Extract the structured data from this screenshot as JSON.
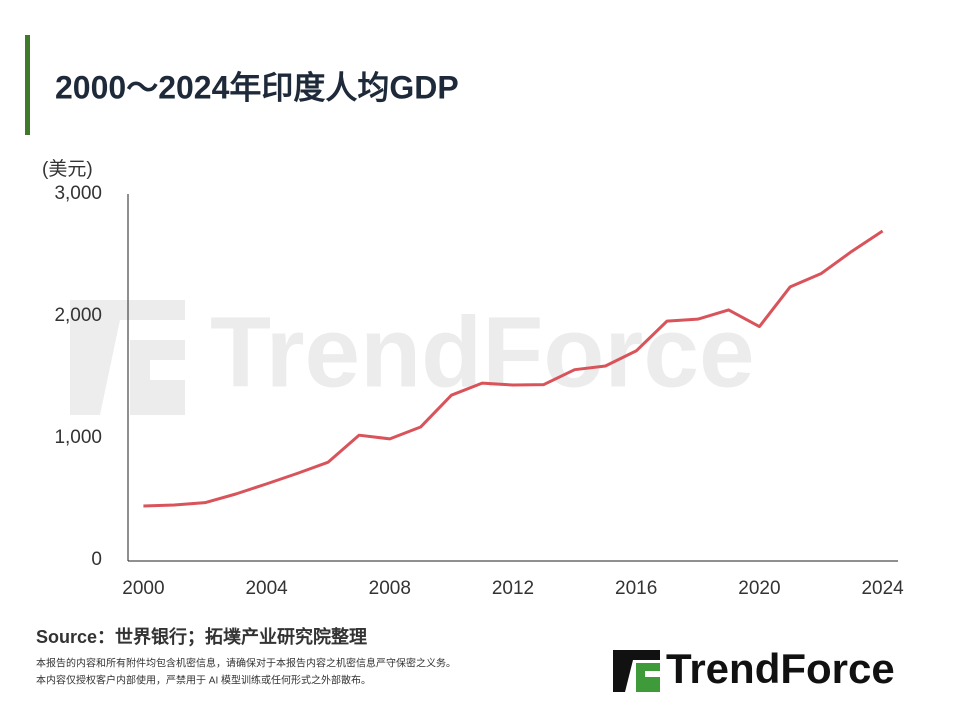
{
  "chart_data": {
    "type": "line",
    "title": "2000～2024年印度人均GDP",
    "y_label": "(美元)",
    "x": [
      2000,
      2001,
      2002,
      2003,
      2004,
      2005,
      2006,
      2007,
      2008,
      2009,
      2010,
      2011,
      2012,
      2013,
      2014,
      2015,
      2016,
      2017,
      2018,
      2019,
      2020,
      2021,
      2022,
      2023,
      2024
    ],
    "series": [
      {
        "name": "印度人均GDP",
        "color": "#d9535a",
        "values": [
          443,
          451,
          470,
          541,
          624,
          710,
          802,
          1023,
          993,
          1090,
          1351,
          1450,
          1434,
          1438,
          1560,
          1590,
          1714,
          1958,
          1974,
          2050,
          1913,
          2239,
          2347,
          2530,
          2697
        ]
      }
    ],
    "xlim": [
      1999.5,
      2024.5
    ],
    "xticks": [
      2000,
      2004,
      2008,
      2012,
      2016,
      2020,
      2024
    ],
    "ylim": [
      0,
      3000
    ],
    "yticks": [
      0,
      {
        "value": 1000,
        "label": "1,000"
      },
      {
        "value": 2000,
        "label": "2,000"
      },
      {
        "value": 3000,
        "label": "3,000"
      }
    ],
    "grid": false,
    "legend": false
  },
  "footer": {
    "source": "Source：世界银行；拓墣产业研究院整理",
    "disclaimer": [
      "本报告的内容和所有附件均包含机密信息，请确保对于本报告内容之机密信息严守保密之义务。",
      "本内容仅授权客户内部使用，严禁用于 AI 模型训练或任何形式之外部散布。"
    ],
    "logo": "TrendForce"
  }
}
